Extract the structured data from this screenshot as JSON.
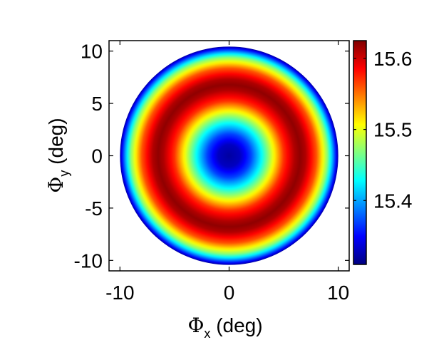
{
  "chart_data": {
    "type": "heatmap",
    "xlabel_symbol": "Φ",
    "xlabel_sub": "x",
    "xlabel_unit": "(deg)",
    "ylabel_symbol": "Φ",
    "ylabel_sub": "y",
    "ylabel_unit": "(deg)",
    "xlim": [
      -11,
      11
    ],
    "ylim": [
      -11,
      11
    ],
    "xticks": [
      -10,
      0,
      10
    ],
    "yticks": [
      10,
      5,
      0,
      -5,
      -10
    ],
    "xtick_labels": [
      "-10",
      "0",
      "10"
    ],
    "ytick_labels": [
      "10",
      "5",
      "0",
      "-5",
      "-10"
    ],
    "domain": {
      "shape": "disk",
      "center": [
        0,
        0
      ],
      "radius": 10
    },
    "field": {
      "description_of_profile": "radially symmetric: minimum at center, maximum ring near r=6.5, falling toward edge",
      "radial_samples_r": [
        0,
        1,
        2,
        3,
        4,
        5,
        6,
        6.5,
        7,
        8,
        9,
        9.5,
        10
      ],
      "radial_samples_value": [
        15.32,
        15.33,
        15.37,
        15.43,
        15.5,
        15.57,
        15.61,
        15.62,
        15.61,
        15.56,
        15.47,
        15.4,
        15.32
      ]
    },
    "colorbar": {
      "colormap": "jet",
      "range": [
        15.31,
        15.625
      ],
      "ticks": [
        15.4,
        15.5,
        15.6
      ],
      "tick_labels": [
        "15.4",
        "15.5",
        "15.6"
      ],
      "placement": "right"
    },
    "grid": false
  }
}
